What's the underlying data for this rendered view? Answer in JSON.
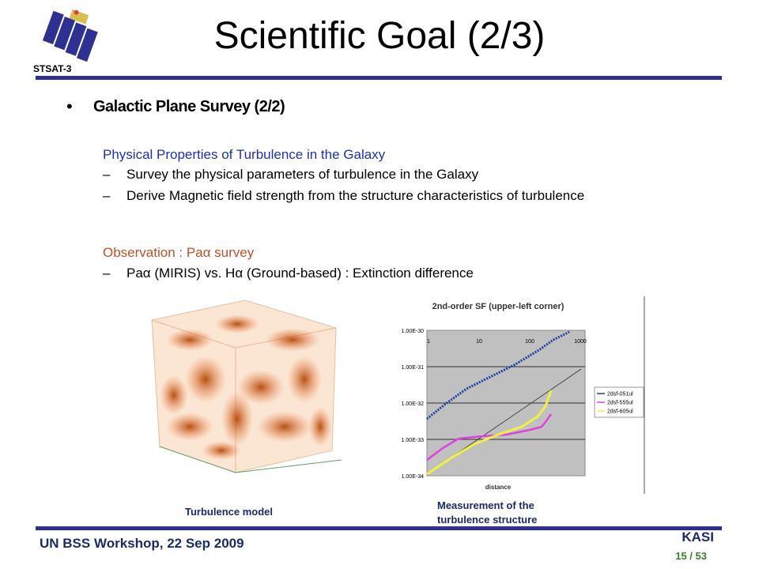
{
  "header": {
    "logo_label": "STSAT-3",
    "title": "Scientific Goal (2/3)"
  },
  "body": {
    "bullet": "Galactic Plane Survey (2/2)",
    "sections": [
      {
        "heading": "Physical Properties of Turbulence in the Galaxy",
        "items": [
          "Survey the physical parameters of turbulence in the Galaxy",
          "Derive Magnetic field strength from the structure characteristics of turbulence"
        ]
      },
      {
        "heading": "Observation : Paα survey",
        "items": [
          "Paα (MIRIS) vs. Hα (Ground-based) : Extinction difference"
        ]
      }
    ]
  },
  "figures": [
    {
      "caption": "Turbulence model"
    },
    {
      "title": "2nd-order SF (upper-left corner)",
      "x_label": "distance",
      "x_ticks": [
        "1",
        "10",
        "100",
        "1000"
      ],
      "y_ticks": [
        "1.00E-30",
        "1.00E-31",
        "1.00E-32",
        "1.00E-33",
        "1.00E-34"
      ],
      "legend": [
        "2dsf-051ul",
        "2dsf-555ul",
        "2dsf-605ul"
      ],
      "caption": "Measurement of the turbulence structure"
    }
  ],
  "footer": {
    "event": "UN BSS Workshop, 22 Sep 2009",
    "org": "KASI",
    "page": "15 / 53"
  }
}
